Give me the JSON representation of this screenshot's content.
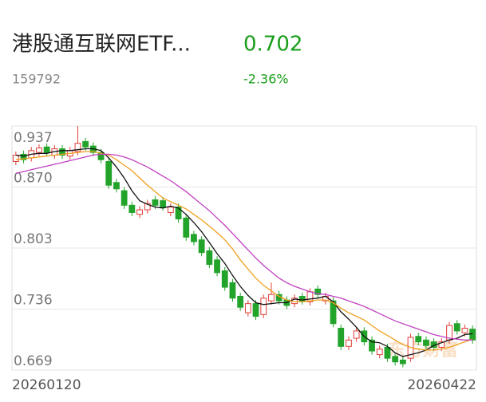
{
  "header": {
    "title": "港股通互联网ETF...",
    "price": "0.702",
    "code": "159792",
    "change": "-2.36%"
  },
  "chart_data": {
    "type": "candlestick",
    "watermark": "东方财富",
    "categories": [
      "20260120",
      null,
      null,
      null,
      null,
      null,
      null,
      null,
      null,
      null,
      null,
      null,
      null,
      null,
      null,
      null,
      null,
      null,
      null,
      null,
      null,
      null,
      null,
      null,
      null,
      null,
      null,
      null,
      null,
      null,
      null,
      null,
      null,
      null,
      null,
      null,
      null,
      null,
      null,
      null,
      null,
      null,
      null,
      null,
      null,
      null,
      null,
      null,
      null,
      null,
      null,
      null,
      null,
      null,
      null,
      null,
      null,
      null,
      null,
      "20260422"
    ],
    "open": [
      0.898,
      0.906,
      0.902,
      0.908,
      0.914,
      0.905,
      0.912,
      0.904,
      0.909,
      0.92,
      0.915,
      0.908,
      0.898,
      0.875,
      0.866,
      0.85,
      0.84,
      0.845,
      0.856,
      0.855,
      0.842,
      0.848,
      0.836,
      0.818,
      0.812,
      0.8,
      0.79,
      0.778,
      0.765,
      0.75,
      0.732,
      0.742,
      0.73,
      0.745,
      0.752,
      0.746,
      0.742,
      0.75,
      0.744,
      0.758,
      0.745,
      0.745,
      0.715,
      0.695,
      0.704,
      0.712,
      0.702,
      0.686,
      0.694,
      0.684,
      0.68,
      0.682,
      0.706,
      0.702,
      0.7,
      0.694,
      0.702,
      0.72,
      0.71,
      0.714
    ],
    "high": [
      0.909,
      0.91,
      0.914,
      0.917,
      0.918,
      0.916,
      0.916,
      0.914,
      0.937,
      0.924,
      0.919,
      0.912,
      0.902,
      0.879,
      0.87,
      0.854,
      0.849,
      0.856,
      0.86,
      0.859,
      0.852,
      0.852,
      0.84,
      0.822,
      0.816,
      0.804,
      0.794,
      0.782,
      0.769,
      0.754,
      0.746,
      0.746,
      0.752,
      0.765,
      0.756,
      0.75,
      0.752,
      0.754,
      0.759,
      0.762,
      0.754,
      0.749,
      0.719,
      0.706,
      0.716,
      0.716,
      0.706,
      0.696,
      0.698,
      0.688,
      0.684,
      0.709,
      0.71,
      0.706,
      0.704,
      0.704,
      0.722,
      0.724,
      0.719,
      0.718
    ],
    "low": [
      0.894,
      0.896,
      0.898,
      0.904,
      0.904,
      0.901,
      0.901,
      0.9,
      0.905,
      0.91,
      0.904,
      0.896,
      0.868,
      0.864,
      0.846,
      0.838,
      0.836,
      0.841,
      0.846,
      0.844,
      0.838,
      0.831,
      0.811,
      0.806,
      0.794,
      0.781,
      0.772,
      0.756,
      0.744,
      0.734,
      0.728,
      0.724,
      0.726,
      0.741,
      0.741,
      0.736,
      0.738,
      0.741,
      0.74,
      0.748,
      0.741,
      0.716,
      0.691,
      0.691,
      0.7,
      0.696,
      0.686,
      0.682,
      0.678,
      0.674,
      0.672,
      0.678,
      0.696,
      0.692,
      0.69,
      0.69,
      0.698,
      0.708,
      0.706,
      0.698
    ],
    "close": [
      0.905,
      0.9,
      0.91,
      0.913,
      0.908,
      0.912,
      0.905,
      0.91,
      0.918,
      0.914,
      0.908,
      0.9,
      0.872,
      0.868,
      0.85,
      0.842,
      0.845,
      0.852,
      0.85,
      0.848,
      0.848,
      0.835,
      0.815,
      0.81,
      0.798,
      0.785,
      0.776,
      0.76,
      0.748,
      0.738,
      0.742,
      0.728,
      0.748,
      0.752,
      0.745,
      0.74,
      0.748,
      0.745,
      0.755,
      0.752,
      0.75,
      0.72,
      0.695,
      0.702,
      0.712,
      0.7,
      0.69,
      0.692,
      0.682,
      0.678,
      0.676,
      0.705,
      0.7,
      0.696,
      0.694,
      0.7,
      0.718,
      0.712,
      0.715,
      0.702
    ],
    "up_color": "#e0403a",
    "down_color": "#22a32a",
    "series": [
      {
        "color": "#111111",
        "values": [
          0.905,
          0.904,
          0.906,
          0.907,
          0.907,
          0.909,
          0.91,
          0.91,
          0.911,
          0.912,
          0.912,
          0.91,
          0.902,
          0.892,
          0.88,
          0.866,
          0.855,
          0.851,
          0.848,
          0.847,
          0.849,
          0.847,
          0.84,
          0.831,
          0.821,
          0.809,
          0.797,
          0.786,
          0.773,
          0.761,
          0.751,
          0.743,
          0.741,
          0.742,
          0.743,
          0.743,
          0.747,
          0.746,
          0.747,
          0.748,
          0.75,
          0.744,
          0.733,
          0.725,
          0.716,
          0.706,
          0.7,
          0.699,
          0.695,
          0.688,
          0.684,
          0.686,
          0.688,
          0.691,
          0.696,
          0.699,
          0.702,
          0.704,
          0.708,
          0.709
        ]
      },
      {
        "color": "#f0a020",
        "values": [
          0.9,
          0.901,
          0.902,
          0.903,
          0.904,
          0.905,
          0.906,
          0.907,
          0.908,
          0.909,
          0.909,
          0.907,
          0.905,
          0.9,
          0.894,
          0.888,
          0.88,
          0.872,
          0.865,
          0.858,
          0.854,
          0.85,
          0.846,
          0.84,
          0.834,
          0.827,
          0.82,
          0.812,
          0.802,
          0.79,
          0.78,
          0.77,
          0.762,
          0.756,
          0.75,
          0.746,
          0.744,
          0.744,
          0.745,
          0.746,
          0.746,
          0.743,
          0.737,
          0.732,
          0.728,
          0.724,
          0.718,
          0.712,
          0.707,
          0.702,
          0.697,
          0.694,
          0.692,
          0.691,
          0.691,
          0.692,
          0.694,
          0.697,
          0.7,
          0.703
        ]
      },
      {
        "color": "#c040c0",
        "values": [
          0.885,
          0.887,
          0.889,
          0.891,
          0.893,
          0.895,
          0.897,
          0.899,
          0.901,
          0.903,
          0.905,
          0.906,
          0.906,
          0.905,
          0.903,
          0.9,
          0.896,
          0.892,
          0.887,
          0.882,
          0.877,
          0.871,
          0.865,
          0.858,
          0.851,
          0.844,
          0.836,
          0.828,
          0.819,
          0.81,
          0.801,
          0.792,
          0.784,
          0.777,
          0.77,
          0.765,
          0.761,
          0.758,
          0.755,
          0.753,
          0.752,
          0.75,
          0.748,
          0.745,
          0.742,
          0.739,
          0.735,
          0.731,
          0.727,
          0.723,
          0.72,
          0.717,
          0.714,
          0.711,
          0.708,
          0.706,
          0.704,
          0.703,
          0.702,
          0.702
        ]
      }
    ],
    "ylim": [
      0.669,
      0.937
    ],
    "yticks": [
      0.669,
      0.736,
      0.803,
      {
        "value": 0.87,
        "label": "0.870"
      },
      0.937
    ],
    "grid": true
  }
}
